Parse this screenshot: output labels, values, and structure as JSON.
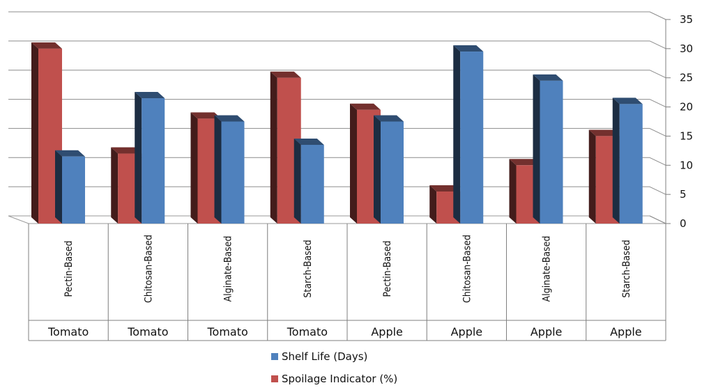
{
  "chart_data": {
    "type": "bar",
    "style": "3d-clustered-column",
    "categories": [
      "Pectin-Based",
      "Chitosan-Based",
      "Alginate-Based",
      "Starch-Based",
      "Pectin-Based",
      "Chitosan-Based",
      "Alginate-Based",
      "Starch-Based"
    ],
    "groups": [
      "Tomato",
      "Tomato",
      "Tomato",
      "Tomato",
      "Apple",
      "Apple",
      "Apple",
      "Apple"
    ],
    "series": [
      {
        "name": "Spoilage Indicator (%)",
        "color": "#c0504d",
        "values": [
          30,
          12,
          18,
          25,
          19.5,
          5.5,
          10,
          15
        ]
      },
      {
        "name": "Shelf Life (Days)",
        "color": "#4f81bd",
        "values": [
          11.5,
          21.5,
          17.5,
          13.5,
          17.5,
          29.5,
          24.5,
          20.5
        ]
      }
    ],
    "yticks": [
      "0",
      "5",
      "10",
      "15",
      "20",
      "25",
      "30",
      "35"
    ],
    "ylim": [
      0,
      35
    ],
    "yaxis_position": "right",
    "legend": {
      "position": "bottom",
      "items": [
        "Shelf Life (Days)",
        "Spoilage Indicator (%)"
      ]
    },
    "gridlines": true
  }
}
